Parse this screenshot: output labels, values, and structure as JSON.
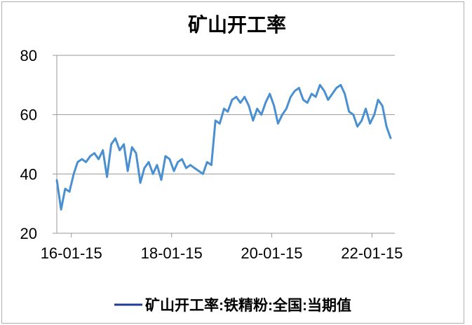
{
  "chart_data": {
    "type": "line",
    "title": "矿山开工率",
    "xlabel": "",
    "ylabel": "",
    "ylim": [
      20,
      80
    ],
    "yticks": [
      20,
      40,
      60,
      80
    ],
    "xticks": [
      "16-01-15",
      "18-01-15",
      "20-01-15",
      "22-01-15"
    ],
    "xlim": [
      "2015-10-01",
      "2022-07-01"
    ],
    "grid": true,
    "legend": "bottom",
    "series": [
      {
        "name": "矿山开工率:铁精粉:全国:当期值",
        "color": "#4a90d0",
        "x": [
          "2015-10-01",
          "2015-11-01",
          "2015-12-01",
          "2016-01-01",
          "2016-02-01",
          "2016-03-01",
          "2016-04-01",
          "2016-05-01",
          "2016-06-01",
          "2016-07-01",
          "2016-08-01",
          "2016-09-01",
          "2016-10-01",
          "2016-11-01",
          "2016-12-01",
          "2017-01-01",
          "2017-02-01",
          "2017-03-01",
          "2017-04-01",
          "2017-05-01",
          "2017-06-01",
          "2017-07-01",
          "2017-08-01",
          "2017-09-01",
          "2017-10-01",
          "2017-11-01",
          "2017-12-01",
          "2018-01-01",
          "2018-02-01",
          "2018-03-01",
          "2018-04-01",
          "2018-05-01",
          "2018-06-01",
          "2018-07-01",
          "2018-08-01",
          "2018-09-01",
          "2018-10-01",
          "2018-11-01",
          "2018-12-01",
          "2019-01-01",
          "2019-02-01",
          "2019-03-01",
          "2019-04-01",
          "2019-05-01",
          "2019-06-01",
          "2019-07-01",
          "2019-08-01",
          "2019-09-01",
          "2019-10-01",
          "2019-11-01",
          "2019-12-01",
          "2020-01-01",
          "2020-02-01",
          "2020-03-01",
          "2020-04-01",
          "2020-05-01",
          "2020-06-01",
          "2020-07-01",
          "2020-08-01",
          "2020-09-01",
          "2020-10-01",
          "2020-11-01",
          "2020-12-01",
          "2021-01-01",
          "2021-02-01",
          "2021-03-01",
          "2021-04-01",
          "2021-05-01",
          "2021-06-01",
          "2021-07-01",
          "2021-08-01",
          "2021-09-01",
          "2021-10-01",
          "2021-11-01",
          "2021-12-01",
          "2022-01-01",
          "2022-02-01",
          "2022-03-01",
          "2022-04-01",
          "2022-05-01",
          "2022-06-01"
        ],
        "y": [
          38,
          28,
          35,
          34,
          40,
          44,
          45,
          44,
          46,
          47,
          45,
          48,
          39,
          50,
          52,
          48,
          50,
          41,
          49,
          47,
          37,
          42,
          44,
          40,
          43,
          38,
          46,
          45,
          41,
          44,
          45,
          42,
          43,
          42,
          41,
          40,
          44,
          43,
          58,
          57,
          62,
          61,
          65,
          66,
          64,
          66,
          63,
          58,
          62,
          60,
          64,
          67,
          63,
          57,
          60,
          62,
          66,
          68,
          69,
          65,
          64,
          67,
          66,
          70,
          68,
          65,
          67,
          69,
          70,
          67,
          61,
          60,
          56,
          58,
          62,
          57,
          60,
          65,
          63,
          56,
          52
        ]
      }
    ]
  }
}
